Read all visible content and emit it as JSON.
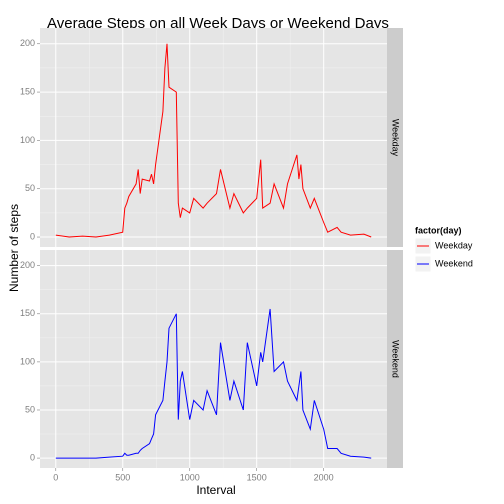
{
  "chart_data": {
    "type": "line",
    "title": "Average Steps on all Week Days or Weekend Days",
    "x_label": "Interval",
    "y_label": "Number of steps",
    "legend_title": "factor(day)",
    "x": [
      0,
      100,
      200,
      300,
      400,
      500,
      515,
      530,
      545,
      600,
      615,
      630,
      645,
      700,
      715,
      730,
      745,
      800,
      815,
      830,
      845,
      900,
      915,
      930,
      945,
      1000,
      1030,
      1100,
      1130,
      1200,
      1230,
      1300,
      1330,
      1400,
      1430,
      1500,
      1530,
      1545,
      1600,
      1630,
      1700,
      1730,
      1800,
      1815,
      1830,
      1845,
      1900,
      1930,
      2000,
      2030,
      2100,
      2130,
      2200,
      2300,
      2355
    ],
    "series": [
      {
        "name": "Weekday",
        "color": "#ff0000",
        "values": [
          2,
          0,
          1,
          0,
          2,
          5,
          30,
          35,
          42,
          55,
          70,
          45,
          60,
          58,
          65,
          55,
          75,
          130,
          175,
          200,
          155,
          150,
          35,
          20,
          30,
          25,
          40,
          30,
          35,
          45,
          70,
          30,
          45,
          25,
          30,
          40,
          80,
          30,
          35,
          55,
          30,
          55,
          85,
          60,
          75,
          50,
          30,
          40,
          15,
          5,
          10,
          5,
          2,
          3,
          0
        ]
      },
      {
        "name": "Weekend",
        "color": "#0000ff",
        "values": [
          0,
          0,
          0,
          0,
          1,
          2,
          5,
          3,
          3,
          5,
          5,
          8,
          10,
          15,
          20,
          25,
          45,
          60,
          80,
          100,
          135,
          150,
          40,
          80,
          90,
          40,
          60,
          50,
          70,
          45,
          120,
          60,
          80,
          50,
          120,
          75,
          110,
          100,
          155,
          90,
          100,
          80,
          60,
          75,
          90,
          50,
          30,
          60,
          30,
          10,
          10,
          5,
          2,
          1,
          0
        ]
      }
    ],
    "xlim": [
      -117.75,
      2472.75
    ],
    "xticks": [
      0,
      500,
      1000,
      1500,
      2000
    ],
    "ylim": [
      -10.3,
      216.3
    ],
    "yticks": [
      0,
      50,
      100,
      150,
      200
    ],
    "grid": true,
    "facets": true,
    "legend": "right"
  }
}
